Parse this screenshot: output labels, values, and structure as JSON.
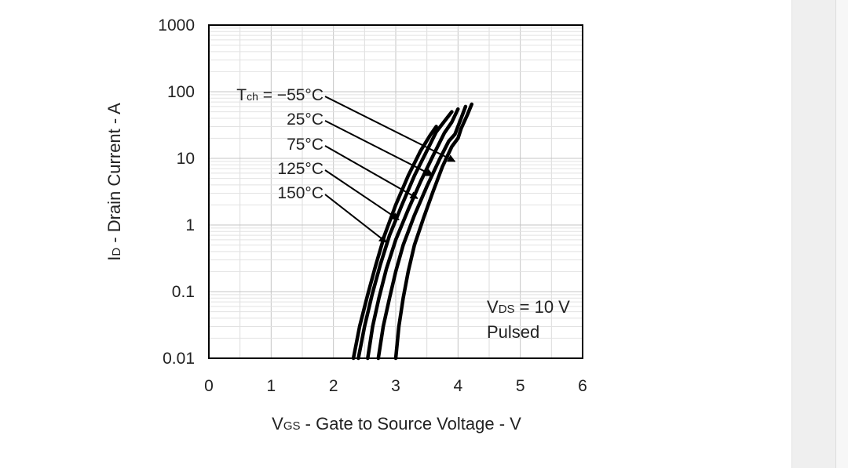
{
  "chart_data": {
    "type": "line",
    "xlabel_main": "V",
    "xlabel_sub": "GS",
    "xlabel_rest": " - Gate to Source Voltage - V",
    "ylabel_main": "I",
    "ylabel_sub": "D",
    "ylabel_rest": " - Drain Current - A",
    "x_ticks": [
      "0",
      "1",
      "2",
      "3",
      "4",
      "5",
      "6"
    ],
    "y_ticks": [
      "0.01",
      "0.1",
      "1",
      "10",
      "100",
      "1000"
    ],
    "xlim": [
      0,
      6
    ],
    "ylim": [
      0.01,
      1000
    ],
    "y_scale": "log",
    "grid": true,
    "note_line1_main": "V",
    "note_line1_sub": "DS",
    "note_line1_rest": " = 10 V",
    "note_line2": "Pulsed",
    "labels": [
      {
        "prefix_main": "T",
        "prefix_sub": "ch",
        "text": " = −55°C"
      },
      {
        "text": "25°C"
      },
      {
        "text": "75°C"
      },
      {
        "text": "125°C"
      },
      {
        "text": "150°C"
      }
    ],
    "series": [
      {
        "x": [
          3.0,
          3.05,
          3.12,
          3.2,
          3.3,
          3.45,
          3.6,
          3.75,
          3.9,
          4.0,
          4.05,
          4.15,
          4.22
        ],
        "y": [
          0.01,
          0.03,
          0.08,
          0.2,
          0.5,
          1.3,
          3.2,
          7.5,
          15,
          20,
          28,
          45,
          65
        ]
      },
      {
        "x": [
          2.72,
          2.8,
          2.9,
          3.0,
          3.12,
          3.3,
          3.5,
          3.7,
          3.85,
          3.95,
          4.05,
          4.12
        ],
        "y": [
          0.01,
          0.03,
          0.08,
          0.2,
          0.5,
          1.4,
          3.8,
          9.5,
          18,
          23,
          40,
          60
        ]
      },
      {
        "x": [
          2.55,
          2.63,
          2.73,
          2.85,
          3.0,
          3.2,
          3.4,
          3.6,
          3.78,
          3.9,
          4.0
        ],
        "y": [
          0.01,
          0.03,
          0.08,
          0.22,
          0.6,
          1.7,
          4.5,
          11,
          24,
          35,
          55
        ]
      },
      {
        "x": [
          2.4,
          2.5,
          2.62,
          2.75,
          2.9,
          3.1,
          3.3,
          3.5,
          3.65,
          3.8,
          3.9
        ],
        "y": [
          0.01,
          0.03,
          0.09,
          0.25,
          0.7,
          2.0,
          5.5,
          13,
          25,
          38,
          50
        ]
      },
      {
        "x": [
          2.32,
          2.42,
          2.55,
          2.68,
          2.82,
          3.0,
          3.2,
          3.4,
          3.55,
          3.65
        ],
        "y": [
          0.01,
          0.03,
          0.09,
          0.25,
          0.7,
          2.0,
          5.5,
          13,
          22,
          30
        ]
      }
    ],
    "arrow_targets": [
      {
        "x": 3.95,
        "y": 9
      },
      {
        "x": 3.6,
        "y": 5.5
      },
      {
        "x": 3.35,
        "y": 2.5
      },
      {
        "x": 3.05,
        "y": 1.2
      },
      {
        "x": 2.85,
        "y": 0.55
      }
    ]
  }
}
